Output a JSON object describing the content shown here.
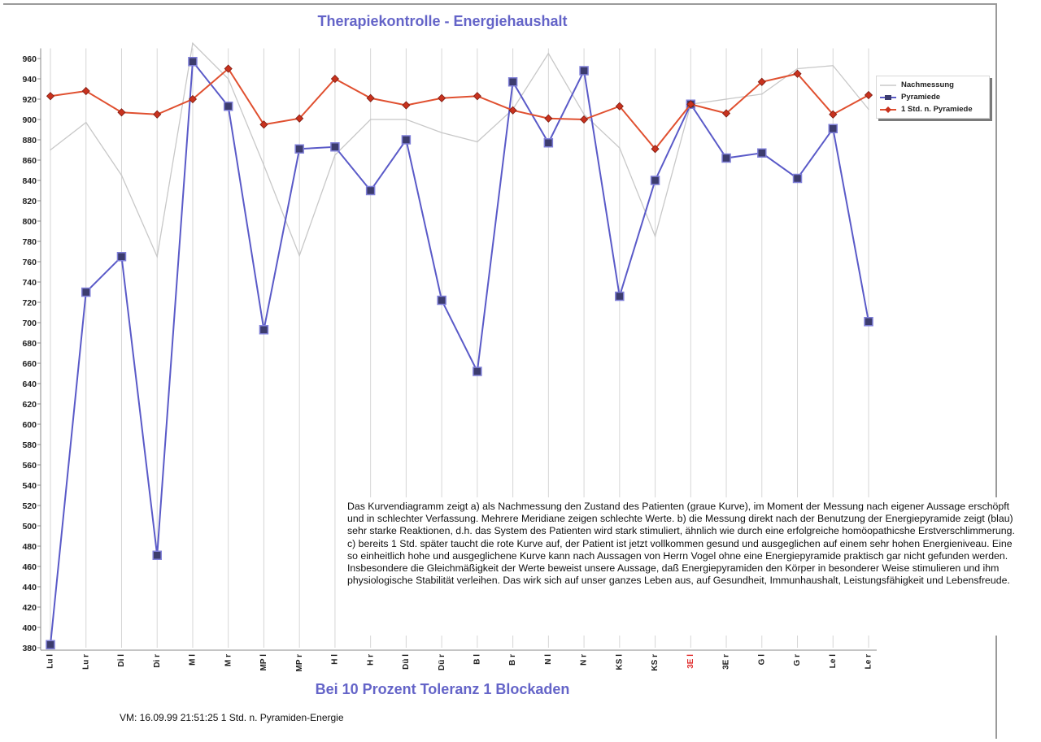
{
  "title": "Therapiekontrolle - Energiehaushalt",
  "subtitle": "Bei 10 Prozent Toleranz 1 Blockaden",
  "footer": "VM: 16.09.99 21:51:25 1 Std. n. Pyramiden-Energie",
  "note": "Das Kurvendiagramm zeigt a) als Nachmessung den Zustand des Patienten (graue Kurve), im Moment der Messung nach eigener Aussage erschöpft und in schlechter Verfassung. Mehrere Meridiane zeigen schlechte Werte. b) die Messung direkt nach der Benutzung der Energiepyramide zeigt (blau) sehr starke Reaktionen, d.h. das System des Patienten wird stark stimuliert, ähnlich wie durch eine erfolgreiche homöopathicshe Erstverschlimmerung. c) bereits 1 Std. später taucht die rote Kurve auf, der Patient ist jetzt vollkommen gesund und ausgeglichen auf einem sehr hohen Energieniveau. Eine so einheitlich hohe und ausgeglichene Kurve kann nach Aussagen von Herrn Vogel ohne eine Energiepyramide praktisch gar nicht gefunden werden. Insbesondere die Gleichmäßigkeit der Werte beweist unsere Aussage, daß Energiepyramiden den Körper in besonderer Weise stimulieren und ihm physiologische Stabilität verleihen. Das wirk sich auf unser ganzes Leben aus, auf Gesundheit, Immunhaushalt, Leistungsfähigkeit und Lebensfreude.",
  "colors": {
    "title": "#6464c8",
    "nachmessung": "#c8c8c8",
    "pyramiede": "#5a5ac8",
    "pyramiede_marker": "#3c3c6e",
    "std": "#e05030",
    "std_marker": "#c8321e",
    "highlight_tick": "#e03030",
    "grid": "#d6d6d6"
  },
  "chart_data": {
    "type": "line",
    "title": "Therapiekontrolle - Energiehaushalt",
    "xlabel": "",
    "ylabel": "",
    "ylim": [
      380,
      970
    ],
    "yticks": [
      380,
      400,
      420,
      440,
      460,
      480,
      500,
      520,
      540,
      560,
      580,
      600,
      620,
      640,
      660,
      680,
      700,
      720,
      740,
      760,
      780,
      800,
      820,
      840,
      860,
      880,
      900,
      920,
      940,
      960
    ],
    "grid": "vertical",
    "legend_position": "right",
    "categories": [
      "Lu l",
      "Lu r",
      "Di l",
      "Di r",
      "M l",
      "M r",
      "MP l",
      "MP r",
      "H l",
      "H r",
      "Dü l",
      "Dü r",
      "B l",
      "B r",
      "N l",
      "N r",
      "KS l",
      "KS r",
      "3E l",
      "3E r",
      "G l",
      "G r",
      "Le l",
      "Le r"
    ],
    "highlight_category": "3E l",
    "series": [
      {
        "name": "Nachmessung",
        "values": [
          870,
          897,
          845,
          765,
          975,
          940,
          855,
          766,
          865,
          900,
          900,
          887,
          878,
          910,
          965,
          905,
          872,
          785,
          915,
          920,
          925,
          950,
          953,
          910
        ]
      },
      {
        "name": "Pyramiede",
        "values": [
          383,
          730,
          765,
          471,
          957,
          913,
          693,
          871,
          873,
          830,
          880,
          722,
          652,
          937,
          877,
          948,
          726,
          840,
          915,
          862,
          867,
          842,
          891,
          701
        ]
      },
      {
        "name": "1 Std. n. Pyramiede",
        "values": [
          923,
          928,
          907,
          905,
          920,
          950,
          895,
          901,
          940,
          921,
          914,
          921,
          923,
          909,
          901,
          900,
          913,
          871,
          915,
          906,
          937,
          945,
          905,
          924
        ]
      }
    ]
  }
}
